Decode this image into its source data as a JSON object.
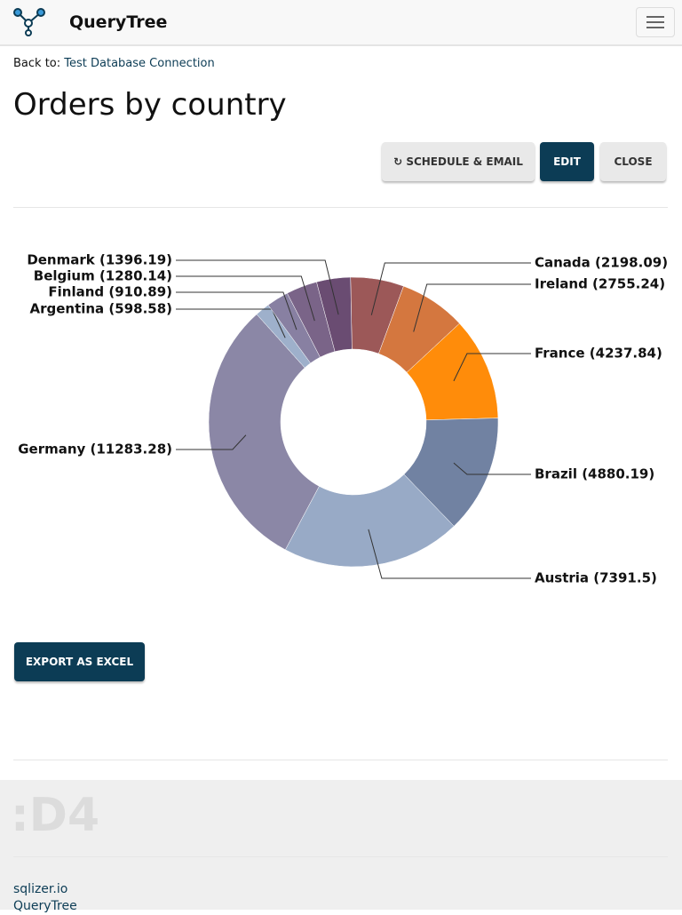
{
  "header": {
    "brand": "QueryTree"
  },
  "back": {
    "prefix": "Back to:",
    "link": "Test Database Connection"
  },
  "buttons": {
    "schedule": "SCHEDULE & EMAIL",
    "edit": "EDIT",
    "close": "CLOSE"
  },
  "chart_data": {
    "type": "donut",
    "title": "Orders by country",
    "categories": [
      "Canada (2198.09)",
      "Ireland (2755.24)",
      "France (4237.84)",
      "Brazil (4880.19)",
      "Austria (7391.5)",
      "Germany (11283.28)",
      "Argentina (598.58)",
      "Finland (910.89)",
      "Belgium (1280.14)",
      "Denmark (1396.19)"
    ],
    "values": [
      2198.09,
      2755.24,
      4237.84,
      4880.19,
      7391.5,
      11283.28,
      598.58,
      910.89,
      1280.14,
      1396.19
    ],
    "colors": [
      "#9c5858",
      "#d4773f",
      "#ff8c0a",
      "#7182a2",
      "#98aac6",
      "#8b87a6",
      "#9eb0cb",
      "#8880a2",
      "#7a6488",
      "#6a4c72"
    ]
  },
  "export": "EXPORT AS EXCEL",
  "footer": {
    "logo": ":D4",
    "links": [
      "sqlizer.io",
      "QueryTree"
    ]
  }
}
